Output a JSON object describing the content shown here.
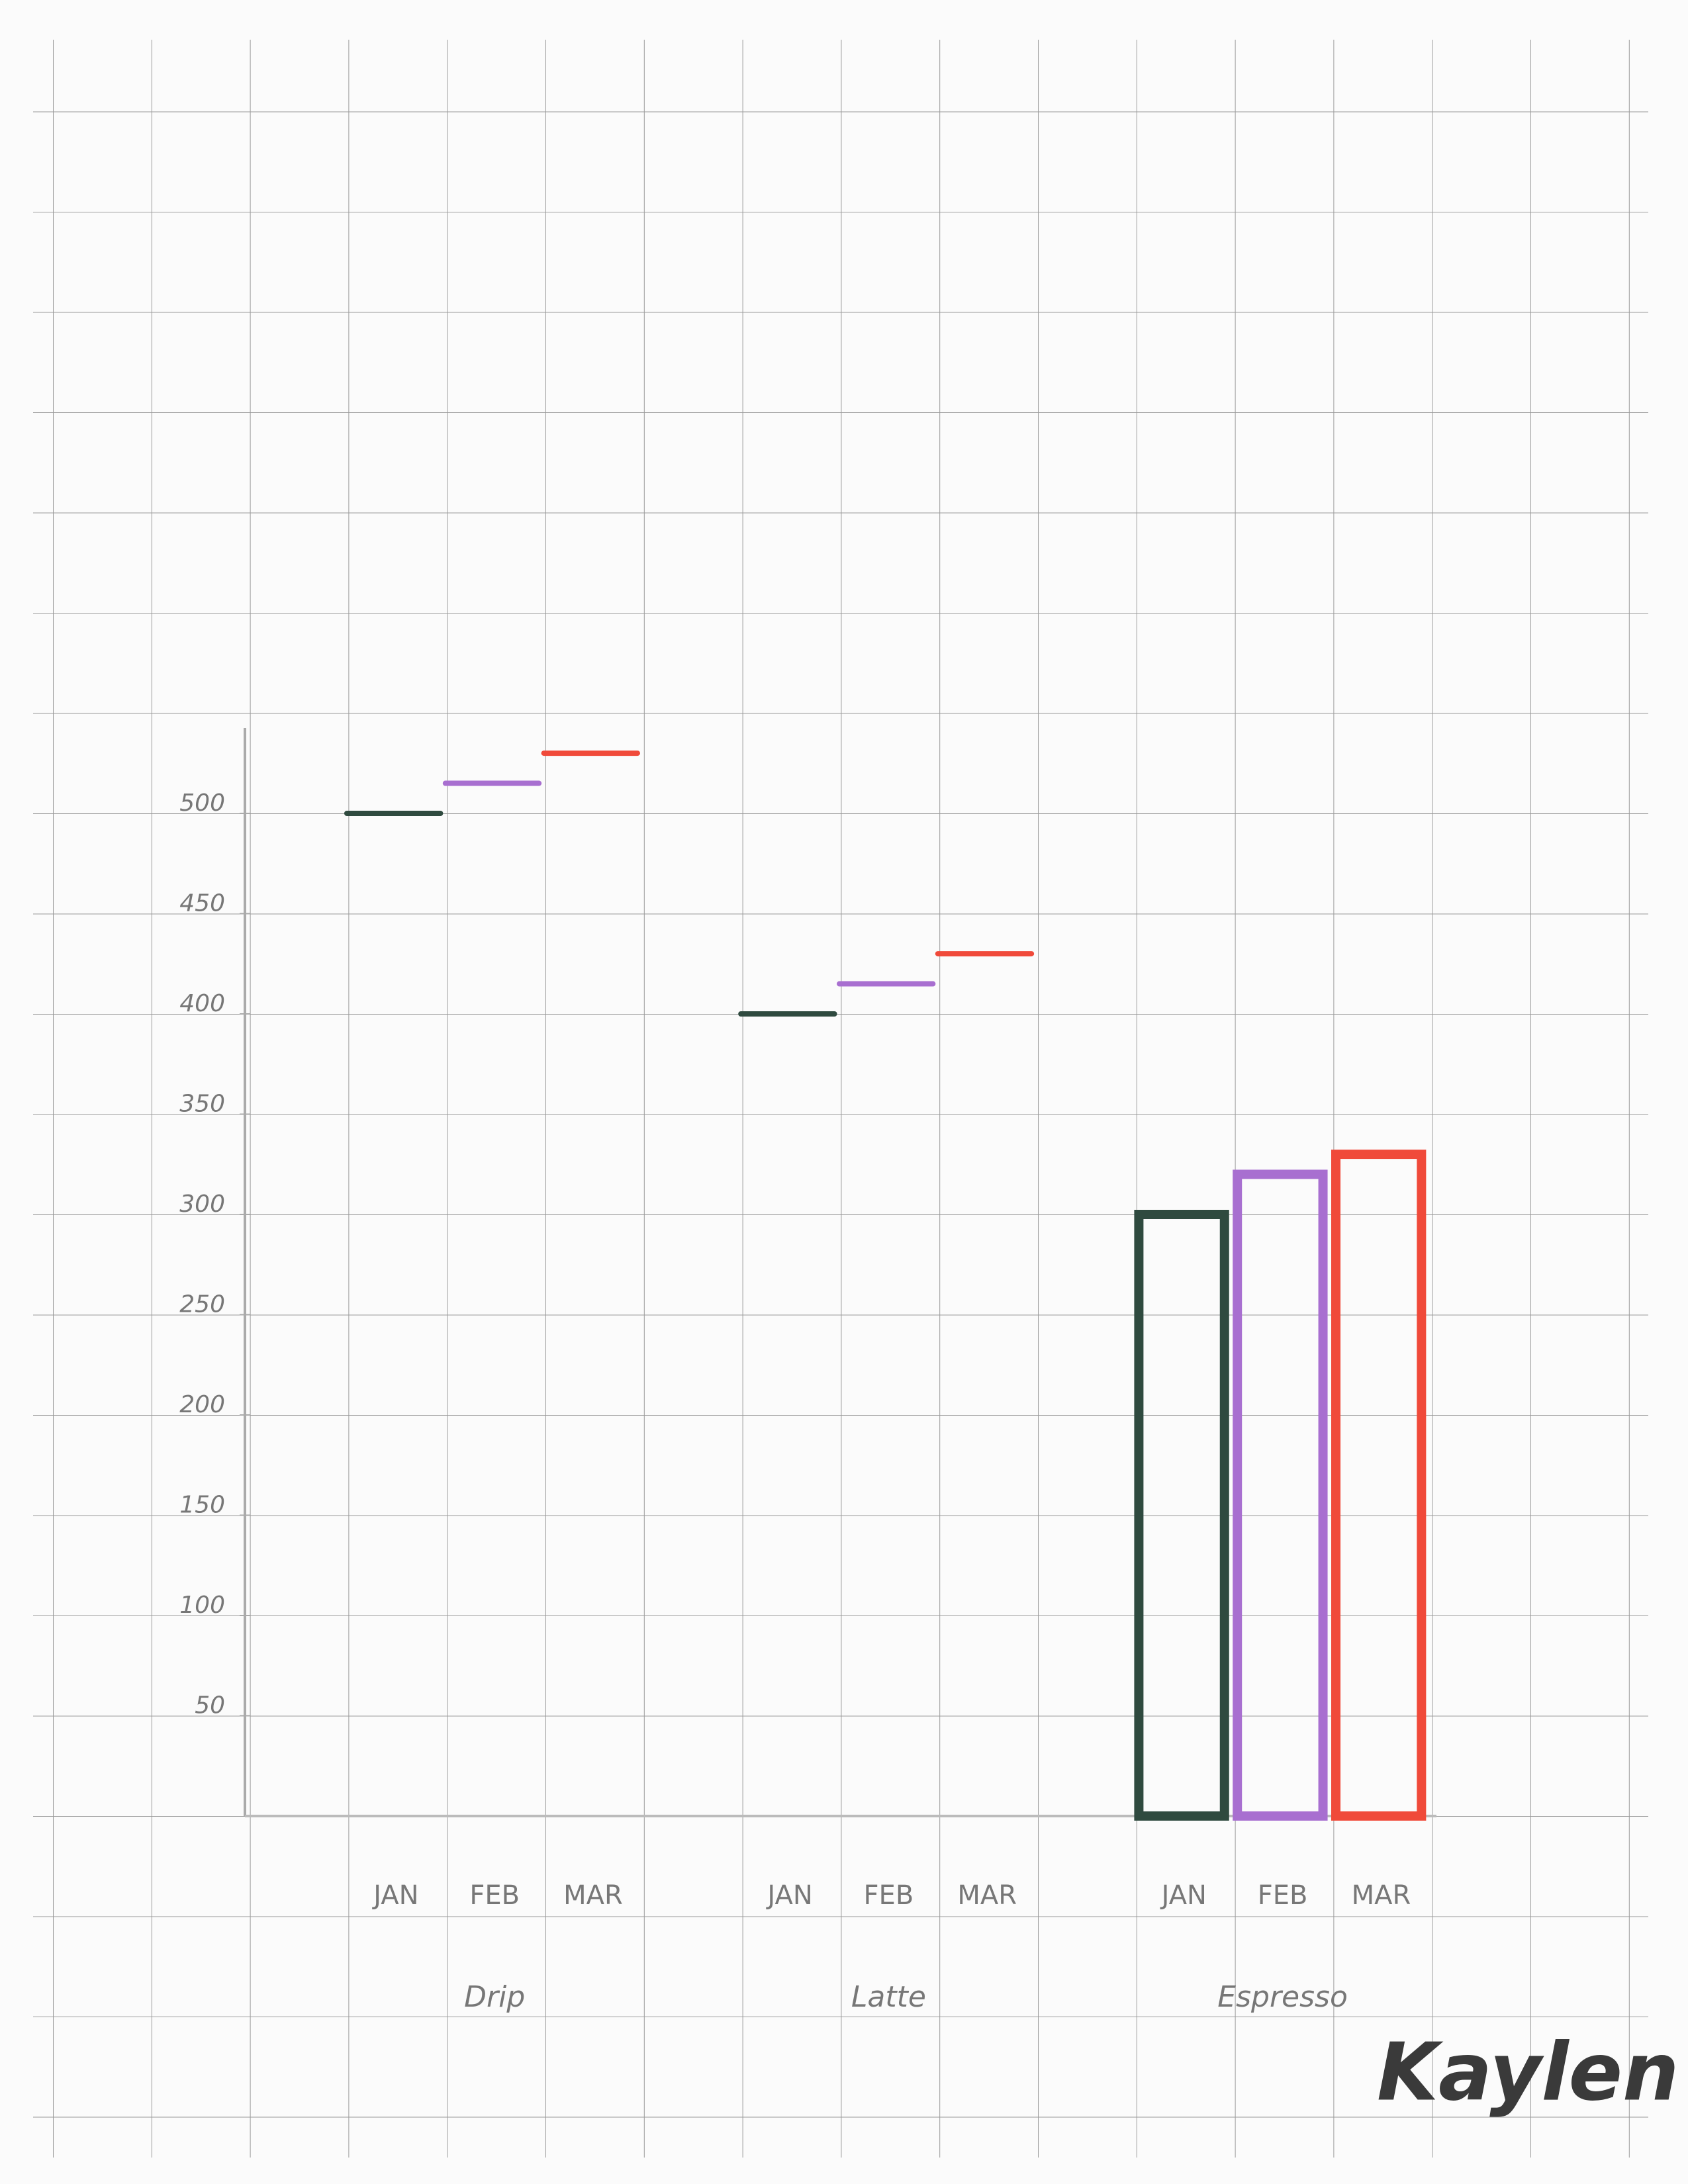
{
  "chart_data": {
    "type": "bar",
    "categories": [
      "Drip",
      "Latte",
      "Espresso"
    ],
    "series": [
      {
        "name": "JAN",
        "color": "#2f4a3f",
        "values": [
          500,
          400,
          300
        ]
      },
      {
        "name": "FEB",
        "color": "#a86fd0",
        "values": [
          515,
          415,
          320
        ]
      },
      {
        "name": "MAR",
        "color": "#f04a3a",
        "values": [
          530,
          430,
          330
        ]
      }
    ],
    "ylim": [
      0,
      550
    ],
    "yticks": [
      50,
      100,
      150,
      200,
      250,
      300,
      350,
      400,
      450,
      500
    ],
    "signature": "Kaylen"
  }
}
